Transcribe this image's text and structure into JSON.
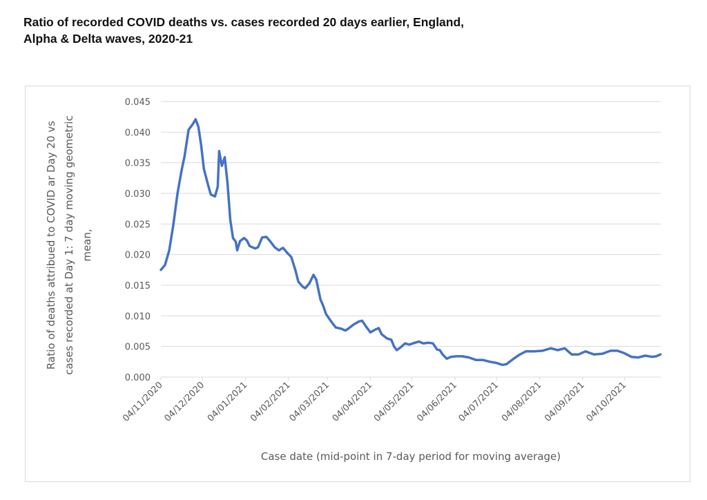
{
  "chart_data": {
    "type": "line",
    "title": "Ratio of recorded COVID deaths vs. cases recorded 20 days earlier, England,",
    "title_line2": "Alpha & Delta waves, 2020-21",
    "xlabel": "Case date (mid-point in 7-day period for moving average)",
    "ylabel_lines": [
      "Ratio of deaths attribued to COVID ar Day 20 vs",
      "cases recorded at Day 1: 7 day moving geometric",
      "mean,"
    ],
    "ylim": [
      0,
      0.045
    ],
    "yticks": [
      "0.000",
      "0.005",
      "0.010",
      "0.015",
      "0.020",
      "0.025",
      "0.030",
      "0.035",
      "0.040",
      "0.045"
    ],
    "x_start_date": "04/11/2020",
    "x_range_days": [
      0,
      360
    ],
    "xticks": [
      {
        "label": "04/11/2020",
        "day": 0
      },
      {
        "label": "04/12/2020",
        "day": 30
      },
      {
        "label": "04/01/2021",
        "day": 61
      },
      {
        "label": "04/02/2021",
        "day": 92
      },
      {
        "label": "04/03/2021",
        "day": 120
      },
      {
        "label": "04/04/2021",
        "day": 151
      },
      {
        "label": "04/05/2021",
        "day": 181
      },
      {
        "label": "04/06/2021",
        "day": 212
      },
      {
        "label": "04/07/2021",
        "day": 242
      },
      {
        "label": "04/08/2021",
        "day": 273
      },
      {
        "label": "04/09/2021",
        "day": 304
      },
      {
        "label": "04/10/2021",
        "day": 334
      }
    ],
    "grid": true,
    "legend": "none",
    "series": [
      {
        "name": "Ratio (7-day moving geometric mean)",
        "color": "#4472c4",
        "points": [
          [
            0,
            0.0175
          ],
          [
            3,
            0.0183
          ],
          [
            6,
            0.0207
          ],
          [
            9,
            0.0249
          ],
          [
            12,
            0.03
          ],
          [
            15,
            0.0338
          ],
          [
            17,
            0.036
          ],
          [
            20,
            0.0404
          ],
          [
            23,
            0.0413
          ],
          [
            25,
            0.0421
          ],
          [
            27,
            0.0409
          ],
          [
            29,
            0.0379
          ],
          [
            31,
            0.034
          ],
          [
            34,
            0.0314
          ],
          [
            36,
            0.0298
          ],
          [
            39,
            0.0295
          ],
          [
            41,
            0.0311
          ],
          [
            42,
            0.0369
          ],
          [
            44,
            0.0345
          ],
          [
            46,
            0.0359
          ],
          [
            48,
            0.0317
          ],
          [
            50,
            0.0257
          ],
          [
            52,
            0.0227
          ],
          [
            54,
            0.0221
          ],
          [
            55,
            0.0207
          ],
          [
            57,
            0.0222
          ],
          [
            60,
            0.0227
          ],
          [
            62,
            0.0223
          ],
          [
            64,
            0.0214
          ],
          [
            68,
            0.021
          ],
          [
            70,
            0.0212
          ],
          [
            73,
            0.0228
          ],
          [
            76,
            0.0229
          ],
          [
            79,
            0.0221
          ],
          [
            82,
            0.0212
          ],
          [
            85,
            0.0207
          ],
          [
            88,
            0.0211
          ],
          [
            91,
            0.0203
          ],
          [
            94,
            0.0196
          ],
          [
            97,
            0.0174
          ],
          [
            99,
            0.0156
          ],
          [
            102,
            0.0148
          ],
          [
            104,
            0.0145
          ],
          [
            107,
            0.0153
          ],
          [
            110,
            0.0167
          ],
          [
            112,
            0.0159
          ],
          [
            115,
            0.0127
          ],
          [
            117,
            0.0116
          ],
          [
            119,
            0.0103
          ],
          [
            123,
            0.009
          ],
          [
            126,
            0.0081
          ],
          [
            130,
            0.0079
          ],
          [
            133,
            0.0076
          ],
          [
            135,
            0.0079
          ],
          [
            139,
            0.0086
          ],
          [
            143,
            0.0091
          ],
          [
            145,
            0.0092
          ],
          [
            148,
            0.0082
          ],
          [
            151,
            0.0073
          ],
          [
            154,
            0.0077
          ],
          [
            157,
            0.008
          ],
          [
            159,
            0.007
          ],
          [
            163,
            0.0063
          ],
          [
            166,
            0.0061
          ],
          [
            168,
            0.005
          ],
          [
            170,
            0.0044
          ],
          [
            173,
            0.0049
          ],
          [
            176,
            0.0055
          ],
          [
            179,
            0.0053
          ],
          [
            183,
            0.0056
          ],
          [
            186,
            0.0058
          ],
          [
            189,
            0.0055
          ],
          [
            193,
            0.0056
          ],
          [
            196,
            0.0055
          ],
          [
            199,
            0.0045
          ],
          [
            201,
            0.0044
          ],
          [
            203,
            0.0037
          ],
          [
            206,
            0.003
          ],
          [
            209,
            0.0033
          ],
          [
            213,
            0.0034
          ],
          [
            217,
            0.0034
          ],
          [
            222,
            0.0032
          ],
          [
            227,
            0.0028
          ],
          [
            232,
            0.0028
          ],
          [
            237,
            0.0025
          ],
          [
            242,
            0.0023
          ],
          [
            246,
            0.002
          ],
          [
            249,
            0.0021
          ],
          [
            253,
            0.0028
          ],
          [
            258,
            0.0036
          ],
          [
            263,
            0.0042
          ],
          [
            269,
            0.0042
          ],
          [
            275,
            0.0043
          ],
          [
            281,
            0.0047
          ],
          [
            286,
            0.0044
          ],
          [
            291,
            0.0047
          ],
          [
            296,
            0.0037
          ],
          [
            301,
            0.0037
          ],
          [
            306,
            0.0042
          ],
          [
            312,
            0.0037
          ],
          [
            318,
            0.0038
          ],
          [
            324,
            0.0043
          ],
          [
            329,
            0.0043
          ],
          [
            334,
            0.0039
          ],
          [
            339,
            0.0033
          ],
          [
            344,
            0.0032
          ],
          [
            349,
            0.0035
          ],
          [
            354,
            0.0033
          ],
          [
            357,
            0.0034
          ],
          [
            360,
            0.0037
          ]
        ]
      }
    ]
  }
}
